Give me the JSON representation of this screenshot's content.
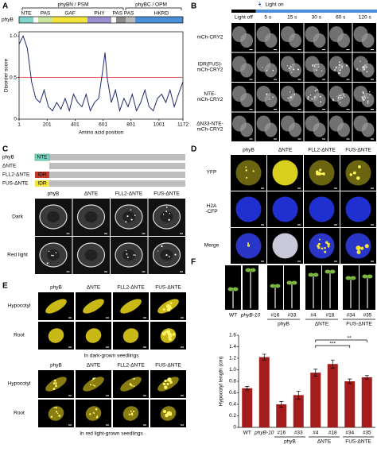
{
  "panel_labels": [
    "A",
    "B",
    "C",
    "D",
    "E",
    "F"
  ],
  "panel_a": {
    "protein": "phyB",
    "domain_groups": [
      "phyBN / PSM",
      "phyBC / OPM"
    ],
    "domains": [
      "NTE",
      "PAS",
      "GAF",
      "PHY",
      "PAS PAS",
      "HKRD"
    ]
  },
  "panel_b": {
    "light_off": "Light off",
    "light_on": "Light on",
    "times": [
      "5 s",
      "15 s",
      "30 s",
      "60 s",
      "120 s"
    ],
    "rows": [
      [
        "mCh-CRY2"
      ],
      [
        "IDR(FUS)-",
        "mCh-CRY2"
      ],
      [
        "NTE-",
        "mCh-CRY2"
      ],
      [
        "ΔN33-NTE-",
        "mCh-CRY2"
      ]
    ]
  },
  "panel_c": {
    "constructs": [
      {
        "name": "phyB",
        "tag": "NTE"
      },
      {
        "name": "ΔNTE"
      },
      {
        "name": "FLL2-ΔNTE",
        "tag": "IDR"
      },
      {
        "name": "FUS-ΔNTE",
        "tag": "IDR"
      }
    ],
    "columns": [
      "phyB",
      "ΔNTE",
      "FLL2-ΔNTE",
      "FUS-ΔNTE"
    ],
    "rows": [
      "Dark",
      "Red light"
    ]
  },
  "panel_d": {
    "columns": [
      "phyB",
      "ΔNTE",
      "FLL2-ΔNTE",
      "FUS-ΔNTE"
    ],
    "rows": [
      [
        "YFP"
      ],
      [
        "H2A",
        "-CFP"
      ],
      [
        "Merge"
      ]
    ]
  },
  "panel_e": {
    "columns": [
      "phyB",
      "ΔNTE",
      "FLL2-ΔNTE",
      "FUS-ΔNTE"
    ],
    "rows": [
      "Hypocotyl",
      "Root"
    ],
    "conditions": [
      "In dark-grown seedlings",
      "In red light-grown seedlings"
    ]
  },
  "panel_f_photos": {
    "labels": [
      "WT",
      "phyB-10",
      "#16",
      "#33",
      "#4",
      "#18",
      "#34",
      "#35"
    ],
    "groups": [
      "phyB",
      "ΔNTE",
      "FUS-ΔNTE"
    ]
  },
  "chart_data": [
    {
      "type": "line",
      "x_label": "Amino acid position",
      "y_label": "Disorder score",
      "x": [
        1,
        30,
        60,
        90,
        120,
        150,
        180,
        210,
        240,
        270,
        300,
        330,
        360,
        390,
        420,
        450,
        480,
        510,
        540,
        570,
        600,
        615,
        630,
        660,
        690,
        720,
        750,
        780,
        810,
        840,
        870,
        900,
        930,
        960,
        990,
        1020,
        1050,
        1080,
        1110,
        1140,
        1172
      ],
      "values": [
        0.9,
        1.0,
        0.85,
        0.45,
        0.25,
        0.2,
        0.35,
        0.15,
        0.1,
        0.2,
        0.12,
        0.25,
        0.1,
        0.3,
        0.2,
        0.15,
        0.3,
        0.1,
        0.2,
        0.25,
        0.6,
        0.8,
        0.5,
        0.2,
        0.35,
        0.1,
        0.25,
        0.15,
        0.3,
        0.1,
        0.2,
        0.35,
        0.15,
        0.1,
        0.25,
        0.3,
        0.2,
        0.35,
        0.15,
        0.3,
        0.45
      ],
      "color": "#1f2a6b",
      "threshold": 0.5,
      "threshold_color": "#e03030",
      "xlim": [
        1,
        1172
      ],
      "xticks": [
        1,
        201,
        401,
        601,
        801,
        1001,
        1172
      ],
      "ylim": [
        0,
        1.05
      ],
      "yticks": [
        0,
        0.5,
        {
          "value": 1,
          "label": "1.0"
        }
      ]
    },
    {
      "type": "bar",
      "y_label": "Hypocotyl length (cm)",
      "categories": [
        "WT",
        "phyB-10",
        "#16",
        "#33",
        "#4",
        "#18",
        "#34",
        "#35"
      ],
      "values": [
        0.68,
        1.22,
        0.4,
        0.56,
        0.95,
        1.1,
        0.8,
        0.87
      ],
      "errors": [
        0.03,
        0.05,
        0.05,
        0.07,
        0.06,
        0.07,
        0.04,
        0.03
      ],
      "color": "#a51c1c",
      "groups": [
        "phyB",
        "ΔNTE",
        "FUS-ΔNTE"
      ],
      "annotations": [
        "**",
        "***"
      ],
      "ylim": [
        0,
        1.6
      ],
      "yticks": [
        0,
        0.2,
        0.4,
        0.6,
        0.8,
        {
          "value": 1,
          "label": "1.0"
        },
        1.2,
        1.4,
        1.6
      ],
      "grid": false
    }
  ]
}
